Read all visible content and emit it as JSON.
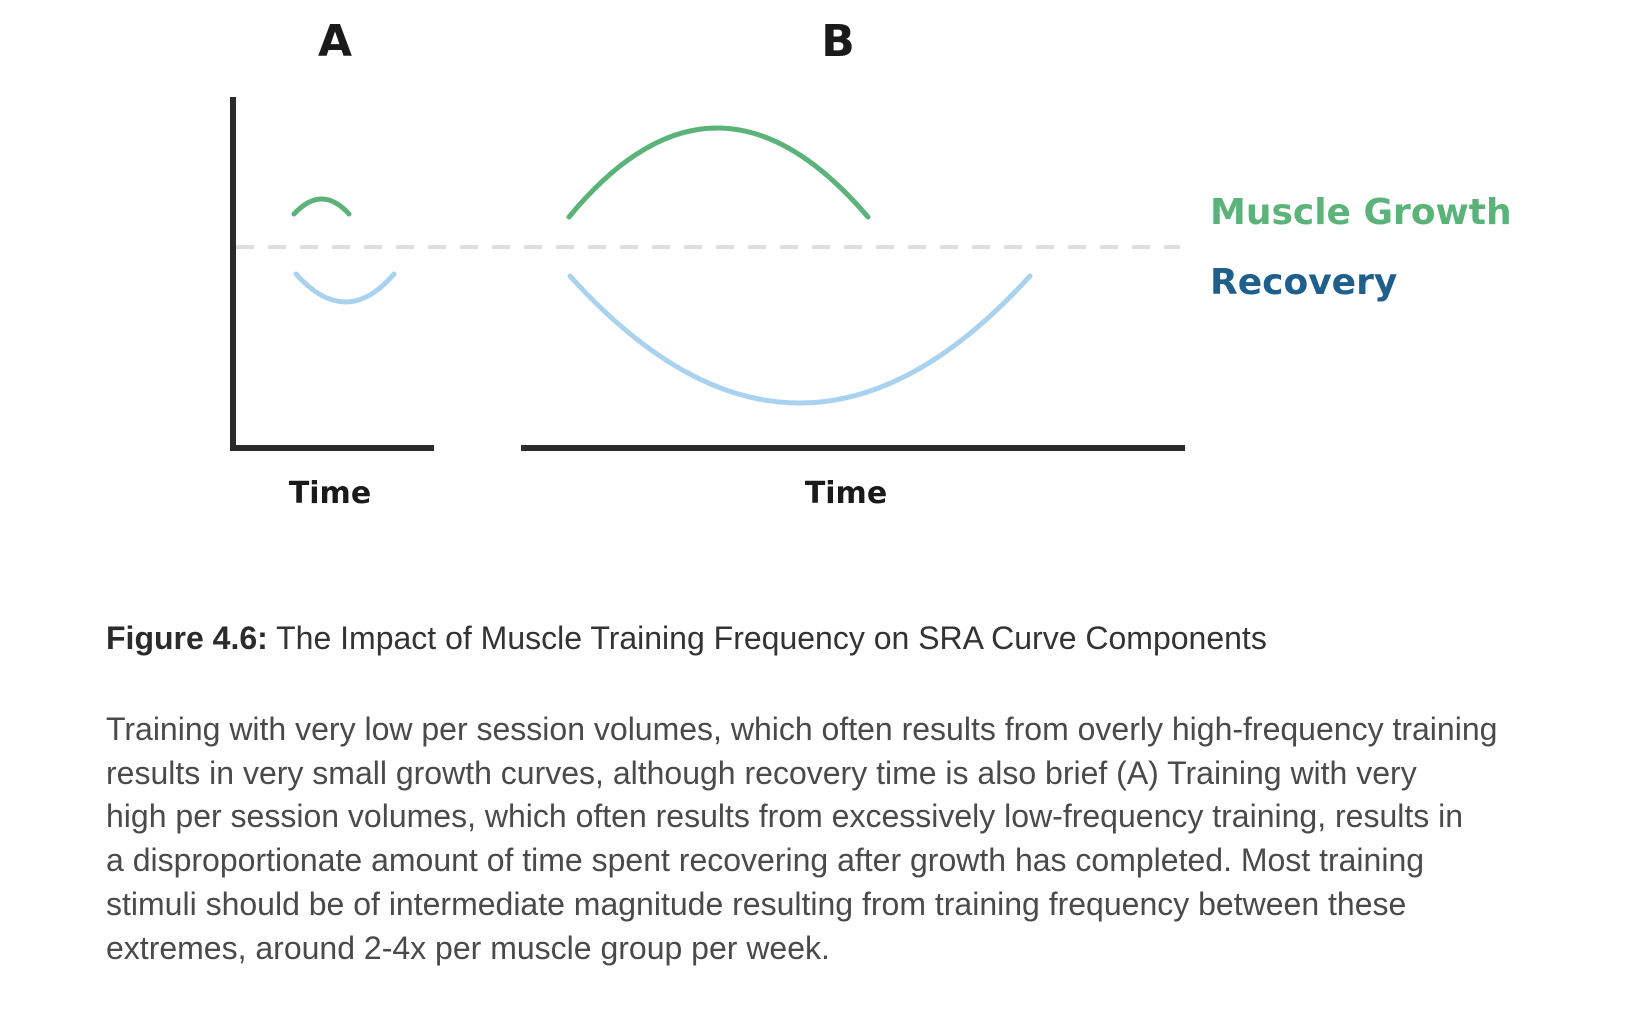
{
  "figure": {
    "panel_a_label": "A",
    "panel_b_label": "B",
    "panel_a_xlabel": "Time",
    "panel_b_xlabel": "Time",
    "legend": {
      "growth_label": "Muscle Growth",
      "recovery_label": "Recovery"
    },
    "colors": {
      "growth": "#5bb37a",
      "recovery": "#a9d2ef",
      "recovery_label": "#1f5f8b",
      "axis": "#2b2b2b",
      "baseline": "#dedede"
    }
  },
  "caption": {
    "label": "Figure 4.6:",
    "title": "The Impact of Muscle Training Frequency on SRA Curve Components"
  },
  "description": {
    "lines": [
      "Training with very low per session volumes, which often results from overly high-frequency training",
      "results in very small growth curves, although recovery time is also brief (A) Training with very",
      "high per session volumes, which often results from excessively low-frequency training, results in",
      "a disproportionate amount of time spent recovering after growth has completed. Most training",
      "stimuli should be of intermediate magnitude resulting from training frequency between these",
      "extremes, around 2-4x per muscle group per week."
    ]
  }
}
